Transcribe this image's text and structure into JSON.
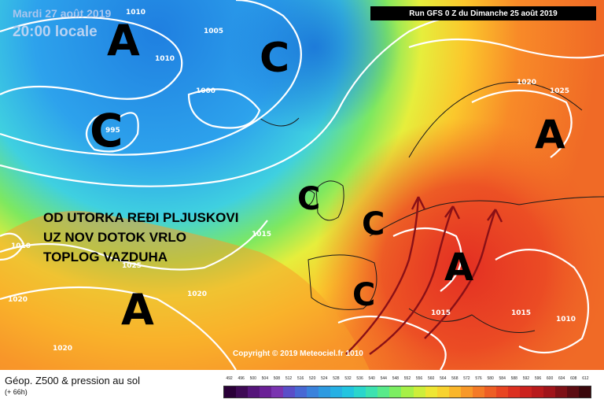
{
  "header": {
    "date": "Mardi 27 août 2019",
    "time": "20:00 locale",
    "run": "Run GFS 0 Z du Dimanche 25 août 2019"
  },
  "headline": {
    "line1": "OD UTORKA REĐI PLJUSKOVI",
    "line2": "UZ NOV DOTOK VRLO",
    "line3": "TOPLOG VAZDUHA"
  },
  "copyright": "Copyright © 2019 Meteociel.fr 1010",
  "legend": {
    "title": "Géop. Z500 & pression au sol",
    "subtitle": "(+ 66h)",
    "scale_values": [
      "492",
      "496",
      "500",
      "504",
      "508",
      "512",
      "516",
      "520",
      "524",
      "528",
      "532",
      "536",
      "540",
      "544",
      "548",
      "552",
      "556",
      "560",
      "564",
      "568",
      "572",
      "576",
      "580",
      "584",
      "588",
      "592",
      "596",
      "600",
      "604",
      "608",
      "612"
    ],
    "scale_colors": [
      "#2a0038",
      "#3e0a55",
      "#55157a",
      "#6a2096",
      "#7a34b0",
      "#5a4ec8",
      "#4868d4",
      "#3a82dc",
      "#2d9ae0",
      "#26b0e4",
      "#22c4e0",
      "#2ad6cc",
      "#3ce2b0",
      "#58ea8a",
      "#7cee62",
      "#a6f048",
      "#cdee3a",
      "#eee633",
      "#f8d22e",
      "#fab62a",
      "#f89828",
      "#f47a26",
      "#ee5e24",
      "#e84522",
      "#dc3020",
      "#cc221e",
      "#b81a1c",
      "#a0141a",
      "#7e1016",
      "#5c0c12",
      "#3a080c"
    ]
  },
  "pressure_systems": [
    {
      "label": "A"
    },
    {
      "label": "C"
    },
    {
      "label": "C"
    },
    {
      "label": "A"
    },
    {
      "label": "C"
    },
    {
      "label": "C"
    },
    {
      "label": "A"
    },
    {
      "label": "A"
    },
    {
      "label": "C"
    }
  ],
  "isobar_labels": [
    "1010",
    "1005",
    "1010",
    "995",
    "1000",
    "1020",
    "1025",
    "1010",
    "1025",
    "1020",
    "1020",
    "1015",
    "1015",
    "1020",
    "1015",
    "1010"
  ]
}
